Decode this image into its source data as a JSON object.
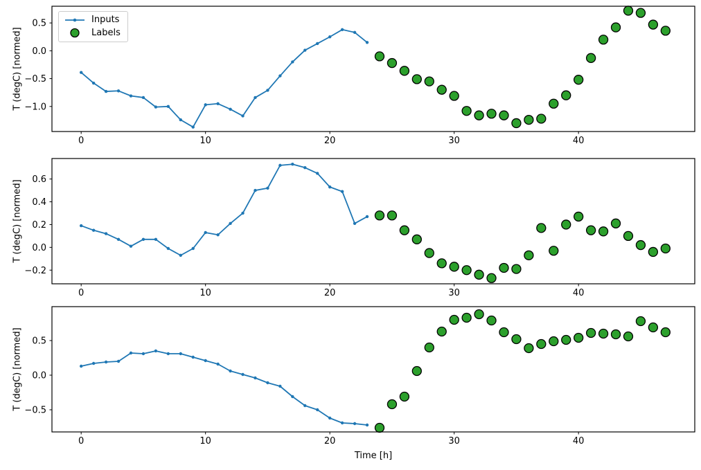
{
  "figure": {
    "xlabel": "Time [h]",
    "ylabel": "T (degC) [normed]",
    "legend": {
      "position": "upper left",
      "items": [
        {
          "label": "Inputs",
          "marker": "line-with-dot",
          "color": "#1f77b4"
        },
        {
          "label": "Labels",
          "marker": "filled-circle",
          "fill": "#2ca02c",
          "edge": "#000000"
        }
      ]
    },
    "colors": {
      "inputs_line": "#1f77b4",
      "labels_fill": "#2ca02c",
      "labels_edge": "#000000",
      "spine": "#000000"
    }
  },
  "chart_data": [
    {
      "type": "line+scatter",
      "title": "",
      "xlabel": "",
      "ylabel": "T (degC) [normed]",
      "xlim": [
        -2.35,
        49.35
      ],
      "ylim": [
        -1.45,
        0.8
      ],
      "grid": false,
      "legend": true,
      "xticks": [
        0,
        10,
        20,
        30,
        40
      ],
      "xtick_labels": [
        "0",
        "10",
        "20",
        "30",
        "40"
      ],
      "yticks": [
        0.5,
        0.0,
        -0.5,
        -1.0
      ],
      "ytick_labels": [
        "0.5",
        "0.0",
        "−0.5",
        "−1.0"
      ],
      "series": [
        {
          "name": "Inputs",
          "kind": "line",
          "color": "#1f77b4",
          "x": [
            0,
            1,
            2,
            3,
            4,
            5,
            6,
            7,
            8,
            9,
            10,
            11,
            12,
            13,
            14,
            15,
            16,
            17,
            18,
            19,
            20,
            21,
            22,
            23
          ],
          "values": [
            -0.39,
            -0.58,
            -0.73,
            -0.72,
            -0.81,
            -0.84,
            -1.01,
            -1.0,
            -1.24,
            -1.37,
            -0.97,
            -0.95,
            -1.05,
            -1.17,
            -0.84,
            -0.71,
            -0.45,
            -0.2,
            0.01,
            0.13,
            0.25,
            0.38,
            0.33,
            0.15
          ]
        },
        {
          "name": "Labels",
          "kind": "scatter",
          "fill": "#2ca02c",
          "edge": "#000000",
          "x": [
            24,
            25,
            26,
            27,
            28,
            29,
            30,
            31,
            32,
            33,
            34,
            35,
            36,
            37,
            38,
            39,
            40,
            41,
            42,
            43,
            44,
            45,
            46,
            47
          ],
          "values": [
            -0.1,
            -0.22,
            -0.36,
            -0.51,
            -0.55,
            -0.7,
            -0.81,
            -1.08,
            -1.16,
            -1.13,
            -1.16,
            -1.3,
            -1.24,
            -1.22,
            -0.95,
            -0.8,
            -0.52,
            -0.13,
            0.2,
            0.42,
            0.72,
            0.68,
            0.47,
            0.36
          ]
        }
      ]
    },
    {
      "type": "line+scatter",
      "title": "",
      "xlabel": "",
      "ylabel": "T (degC) [normed]",
      "xlim": [
        -2.35,
        49.35
      ],
      "ylim": [
        -0.32,
        0.78
      ],
      "grid": false,
      "legend": false,
      "xticks": [
        0,
        10,
        20,
        30,
        40
      ],
      "xtick_labels": [
        "0",
        "10",
        "20",
        "30",
        "40"
      ],
      "yticks": [
        0.6,
        0.4,
        0.2,
        0.0,
        -0.2
      ],
      "ytick_labels": [
        "0.6",
        "0.4",
        "0.2",
        "0.0",
        "−0.2"
      ],
      "series": [
        {
          "name": "Inputs",
          "kind": "line",
          "color": "#1f77b4",
          "x": [
            0,
            1,
            2,
            3,
            4,
            5,
            6,
            7,
            8,
            9,
            10,
            11,
            12,
            13,
            14,
            15,
            16,
            17,
            18,
            19,
            20,
            21,
            22,
            23
          ],
          "values": [
            0.19,
            0.15,
            0.12,
            0.07,
            0.01,
            0.07,
            0.07,
            -0.01,
            -0.07,
            -0.01,
            0.13,
            0.11,
            0.21,
            0.3,
            0.5,
            0.52,
            0.72,
            0.73,
            0.7,
            0.65,
            0.53,
            0.49,
            0.21,
            0.27
          ]
        },
        {
          "name": "Labels",
          "kind": "scatter",
          "fill": "#2ca02c",
          "edge": "#000000",
          "x": [
            24,
            25,
            26,
            27,
            28,
            29,
            30,
            31,
            32,
            33,
            34,
            35,
            36,
            37,
            38,
            39,
            40,
            41,
            42,
            43,
            44,
            45,
            46,
            47
          ],
          "values": [
            0.28,
            0.28,
            0.15,
            0.07,
            -0.05,
            -0.14,
            -0.17,
            -0.2,
            -0.24,
            -0.27,
            -0.18,
            -0.19,
            -0.07,
            0.17,
            -0.03,
            0.2,
            0.27,
            0.15,
            0.14,
            0.21,
            0.1,
            0.02,
            -0.04,
            -0.01
          ]
        }
      ]
    },
    {
      "type": "line+scatter",
      "title": "",
      "xlabel": "Time [h]",
      "ylabel": "T (degC) [normed]",
      "xlim": [
        -2.35,
        49.35
      ],
      "ylim": [
        -0.82,
        0.99
      ],
      "grid": false,
      "legend": false,
      "xticks": [
        0,
        10,
        20,
        30,
        40
      ],
      "xtick_labels": [
        "0",
        "10",
        "20",
        "30",
        "40"
      ],
      "yticks": [
        0.5,
        0.0,
        -0.5
      ],
      "ytick_labels": [
        "0.5",
        "0.0",
        "−0.5"
      ],
      "series": [
        {
          "name": "Inputs",
          "kind": "line",
          "color": "#1f77b4",
          "x": [
            0,
            1,
            2,
            3,
            4,
            5,
            6,
            7,
            8,
            9,
            10,
            11,
            12,
            13,
            14,
            15,
            16,
            17,
            18,
            19,
            20,
            21,
            22,
            23
          ],
          "values": [
            0.13,
            0.17,
            0.19,
            0.2,
            0.32,
            0.31,
            0.35,
            0.31,
            0.31,
            0.26,
            0.21,
            0.16,
            0.06,
            0.01,
            -0.04,
            -0.11,
            -0.16,
            -0.31,
            -0.44,
            -0.5,
            -0.62,
            -0.69,
            -0.7,
            -0.72
          ]
        },
        {
          "name": "Labels",
          "kind": "scatter",
          "fill": "#2ca02c",
          "edge": "#000000",
          "x": [
            24,
            25,
            26,
            27,
            28,
            29,
            30,
            31,
            32,
            33,
            34,
            35,
            36,
            37,
            38,
            39,
            40,
            41,
            42,
            43,
            44,
            45,
            46,
            47
          ],
          "values": [
            -0.76,
            -0.42,
            -0.31,
            0.06,
            0.4,
            0.63,
            0.8,
            0.83,
            0.88,
            0.79,
            0.62,
            0.52,
            0.39,
            0.45,
            0.49,
            0.51,
            0.54,
            0.61,
            0.6,
            0.59,
            0.56,
            0.78,
            0.69,
            0.62
          ]
        }
      ]
    }
  ]
}
